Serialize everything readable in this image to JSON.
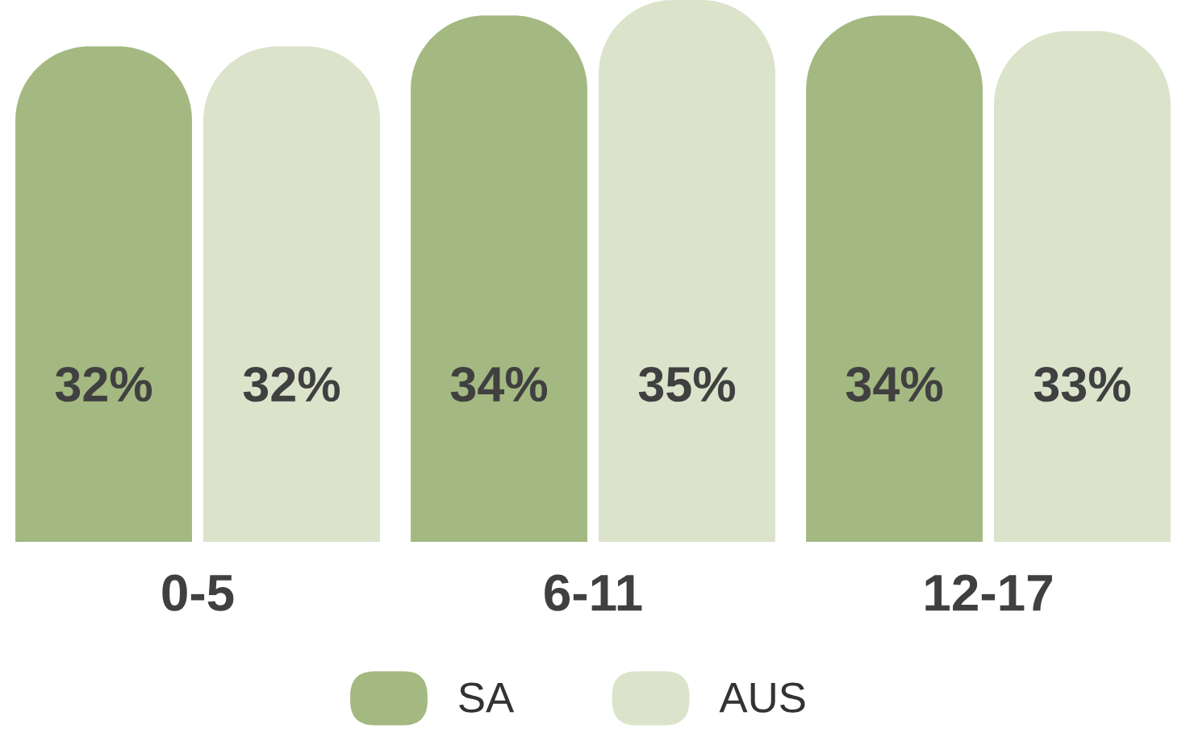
{
  "chart_data": {
    "type": "bar",
    "categories": [
      "0-5",
      "6-11",
      "12-17"
    ],
    "series": [
      {
        "name": "SA",
        "color": "#a4b981",
        "values": [
          32,
          34,
          34
        ],
        "value_labels": [
          "32%",
          "34%",
          "34%"
        ]
      },
      {
        "name": "AUS",
        "color": "#dbe3cb",
        "values": [
          32,
          35,
          33
        ],
        "value_labels": [
          "32%",
          "35%",
          "33%"
        ]
      }
    ],
    "legend": "bottom",
    "tick_labels": "x"
  }
}
